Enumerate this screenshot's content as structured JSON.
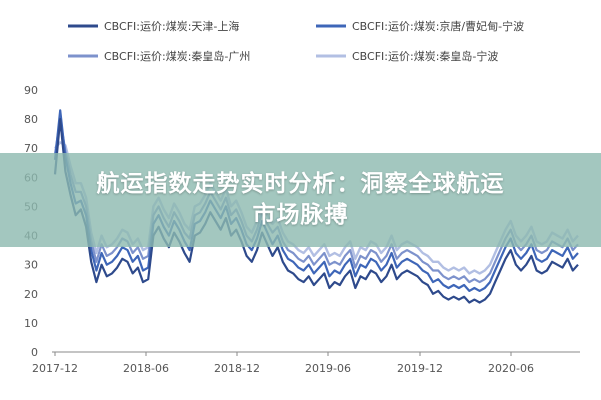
{
  "banner": {
    "line1": "航运指数走势实时分析：洞察全球航运",
    "line2": "市场脉搏"
  },
  "chart_data": {
    "type": "line",
    "title": "",
    "xlabel": "",
    "ylabel": "",
    "ylim": [
      0,
      90
    ],
    "yticks": [
      0,
      10,
      20,
      30,
      40,
      50,
      60,
      70,
      80,
      90
    ],
    "xtick_labels": [
      "2017-12",
      "2018-06",
      "2018-12",
      "2019-06",
      "2019-12",
      "2020-06"
    ],
    "legend_position": "top",
    "grid": false,
    "series": [
      {
        "name": "CBCFI:运价:煤炭:天津-上海",
        "color": "#2e4a8c",
        "width": 2.2,
        "values": [
          61,
          80,
          62,
          54,
          47,
          49,
          43,
          31,
          24,
          30,
          26,
          27,
          29,
          32,
          31,
          27,
          29,
          24,
          25,
          40,
          43,
          39,
          36,
          41,
          38,
          34,
          31,
          40,
          41,
          44,
          48,
          45,
          42,
          46,
          40,
          42,
          38,
          33,
          31,
          35,
          41,
          37,
          33,
          36,
          31,
          28,
          27,
          25,
          24,
          26,
          23,
          25,
          27,
          22,
          24,
          23,
          26,
          28,
          22,
          26,
          25,
          28,
          27,
          24,
          26,
          30,
          25,
          27,
          28,
          27,
          26,
          24,
          23,
          20,
          21,
          19,
          18,
          19,
          18,
          19,
          17,
          18,
          17,
          18,
          20,
          24,
          28,
          32,
          35,
          30,
          28,
          30,
          33,
          28,
          27,
          28,
          31,
          30,
          29,
          32,
          28,
          30
        ]
      },
      {
        "name": "CBCFI:运价:煤炭:京唐/曹妃甸-宁波",
        "color": "#3e66b8",
        "width": 2.2,
        "values": [
          66,
          83,
          67,
          58,
          51,
          52,
          47,
          35,
          28,
          34,
          30,
          31,
          33,
          36,
          35,
          31,
          33,
          28,
          29,
          44,
          47,
          43,
          40,
          45,
          42,
          38,
          35,
          44,
          45,
          48,
          52,
          49,
          46,
          50,
          44,
          46,
          42,
          37,
          35,
          39,
          45,
          41,
          37,
          40,
          35,
          32,
          31,
          29,
          28,
          30,
          27,
          29,
          31,
          26,
          28,
          27,
          30,
          32,
          26,
          30,
          29,
          32,
          31,
          28,
          30,
          34,
          29,
          31,
          32,
          31,
          30,
          28,
          27,
          24,
          25,
          23,
          22,
          23,
          22,
          23,
          21,
          22,
          21,
          22,
          24,
          28,
          32,
          36,
          39,
          34,
          32,
          34,
          37,
          32,
          31,
          32,
          35,
          34,
          33,
          36,
          32,
          34
        ]
      },
      {
        "name": "CBCFI:运价:煤炭:秦皇岛-广州",
        "color": "#7d92cc",
        "width": 2.2,
        "values": [
          68,
          80,
          69,
          61,
          55,
          55,
          50,
          38,
          31,
          37,
          33,
          34,
          36,
          39,
          38,
          34,
          36,
          32,
          33,
          47,
          50,
          46,
          43,
          48,
          45,
          41,
          39,
          47,
          48,
          51,
          55,
          52,
          49,
          53,
          47,
          49,
          45,
          40,
          38,
          42,
          48,
          44,
          41,
          43,
          38,
          35,
          34,
          32,
          31,
          33,
          30,
          32,
          34,
          30,
          31,
          30,
          33,
          35,
          29,
          33,
          32,
          35,
          34,
          31,
          33,
          37,
          32,
          34,
          35,
          34,
          33,
          31,
          30,
          28,
          28,
          26,
          25,
          26,
          25,
          26,
          24,
          25,
          24,
          25,
          27,
          31,
          35,
          39,
          42,
          37,
          35,
          37,
          40,
          35,
          34,
          35,
          38,
          37,
          36,
          39,
          35,
          37
        ]
      },
      {
        "name": "CBCFI:运价:煤炭:秦皇岛-宁波",
        "color": "#b2bfe3",
        "width": 2.4,
        "values": [
          70,
          72,
          71,
          64,
          58,
          58,
          53,
          41,
          34,
          40,
          36,
          37,
          39,
          42,
          41,
          37,
          39,
          35,
          36,
          50,
          53,
          49,
          46,
          51,
          48,
          44,
          42,
          50,
          51,
          54,
          58,
          55,
          52,
          56,
          50,
          52,
          48,
          43,
          41,
          45,
          51,
          47,
          44,
          46,
          41,
          38,
          37,
          35,
          34,
          36,
          33,
          35,
          37,
          33,
          34,
          33,
          36,
          38,
          32,
          36,
          35,
          38,
          37,
          34,
          36,
          40,
          35,
          37,
          38,
          37,
          36,
          34,
          33,
          31,
          31,
          29,
          28,
          29,
          28,
          29,
          27,
          28,
          27,
          28,
          30,
          34,
          38,
          42,
          45,
          40,
          38,
          40,
          43,
          38,
          37,
          38,
          41,
          40,
          39,
          42,
          38,
          40
        ]
      }
    ]
  }
}
